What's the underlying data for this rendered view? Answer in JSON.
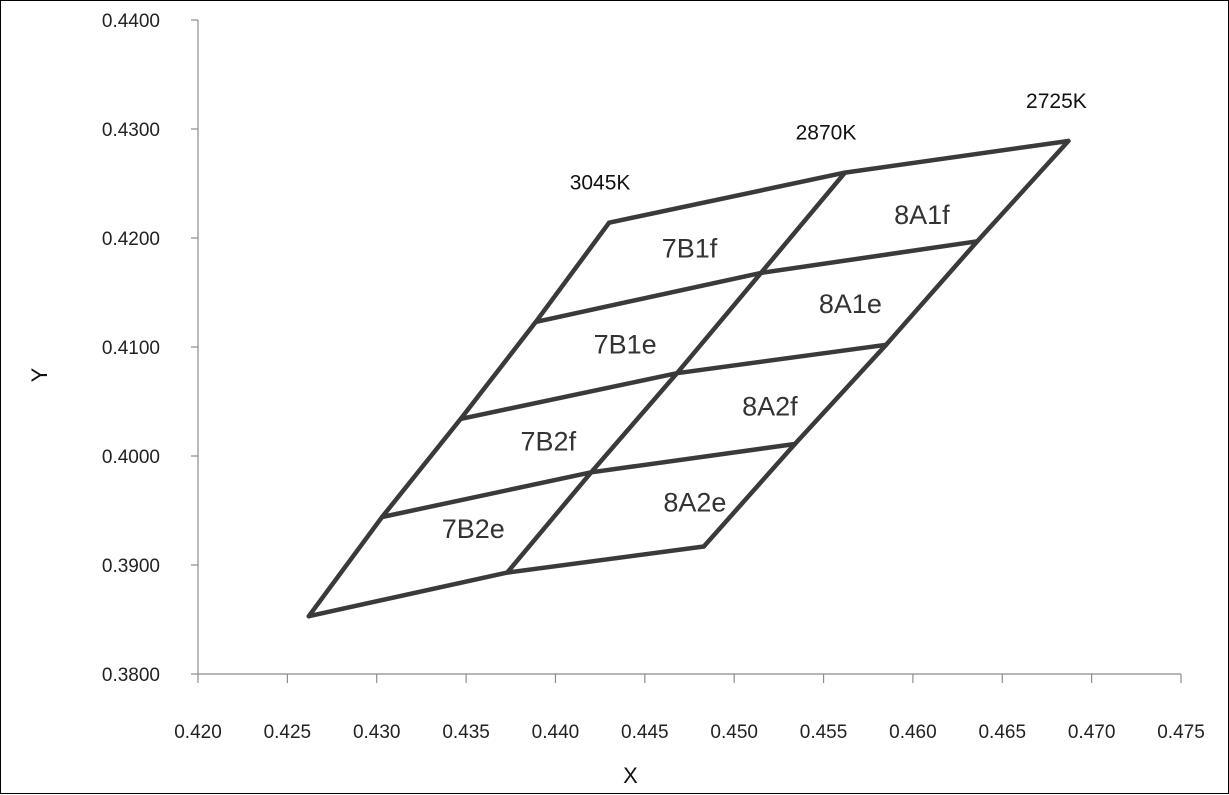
{
  "chart_data": {
    "type": "line",
    "xlabel": "X",
    "ylabel": "Y",
    "xlim": [
      0.42,
      0.475
    ],
    "ylim": [
      0.38,
      0.44
    ],
    "x_ticks": [
      "0.420",
      "0.425",
      "0.430",
      "0.435",
      "0.440",
      "0.445",
      "0.450",
      "0.455",
      "0.460",
      "0.465",
      "0.470",
      "0.475"
    ],
    "y_ticks": [
      "0.3800",
      "0.3900",
      "0.4000",
      "0.4100",
      "0.4200",
      "0.4300",
      "0.4400"
    ],
    "grid": false,
    "line_color": "#3a3a3a",
    "cct_lines": [
      {
        "label": "3045K",
        "points": [
          [
            0.4262,
            0.3853
          ],
          [
            0.4303,
            0.3944
          ],
          [
            0.4347,
            0.4034
          ],
          [
            0.4389,
            0.4123
          ],
          [
            0.443,
            0.4214
          ]
        ]
      },
      {
        "label": "2870K",
        "points": [
          [
            0.4373,
            0.3893
          ],
          [
            0.442,
            0.3985
          ],
          [
            0.4468,
            0.4076
          ],
          [
            0.4515,
            0.4168
          ],
          [
            0.4562,
            0.426
          ]
        ]
      },
      {
        "label": "2725K",
        "points": [
          [
            0.4483,
            0.3917
          ],
          [
            0.4534,
            0.4011
          ],
          [
            0.4585,
            0.4102
          ],
          [
            0.4636,
            0.4197
          ],
          [
            0.4687,
            0.4289
          ]
        ]
      }
    ],
    "bins": [
      {
        "name": "7B1f",
        "x": 0.4475,
        "y": 0.4182
      },
      {
        "name": "8A1f",
        "x": 0.4605,
        "y": 0.4213
      },
      {
        "name": "7B1e",
        "x": 0.4439,
        "y": 0.4094
      },
      {
        "name": "8A1e",
        "x": 0.4565,
        "y": 0.4131
      },
      {
        "name": "7B2f",
        "x": 0.4396,
        "y": 0.4005
      },
      {
        "name": "8A2f",
        "x": 0.452,
        "y": 0.4037
      },
      {
        "name": "7B2e",
        "x": 0.4354,
        "y": 0.3925
      },
      {
        "name": "8A2e",
        "x": 0.4478,
        "y": 0.3949
      }
    ]
  }
}
